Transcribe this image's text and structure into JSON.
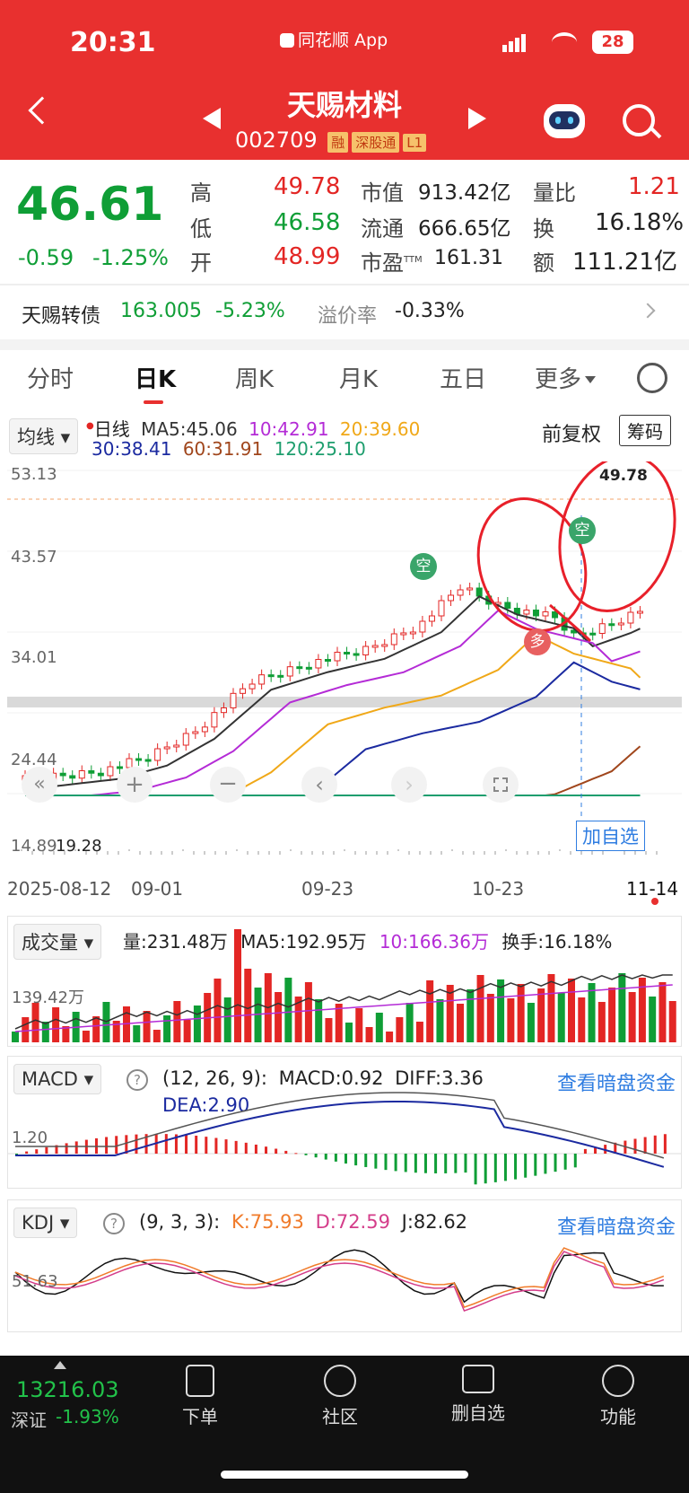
{
  "status_bar": {
    "time": "20:31",
    "app_source": "同花顺 App",
    "battery": "28"
  },
  "header": {
    "title": "天赐材料",
    "code": "002709",
    "tags": [
      "融",
      "深股通",
      "L1"
    ]
  },
  "quote": {
    "price": "46.61",
    "change": "-0.59",
    "change_pct": "-1.25%",
    "high_label": "高",
    "high": "49.78",
    "low_label": "低",
    "low": "46.58",
    "open_label": "开",
    "open": "48.99",
    "mktcap_label": "市值",
    "mktcap": "913.42亿",
    "float_label": "流通",
    "float": "666.65亿",
    "pe_label": "市盈",
    "pe_sup": "TTM",
    "pe": "161.31",
    "volratio_label": "量比",
    "volratio": "1.21",
    "turnover_label": "换",
    "turnover": "16.18%",
    "amount_label": "额",
    "amount": "111.21亿"
  },
  "bond": {
    "name": "天赐转债",
    "price": "163.005",
    "pct": "-5.23%",
    "premium_label": "溢价率",
    "premium": "-0.33%"
  },
  "tabs": [
    "分时",
    "日K",
    "周K",
    "月K",
    "五日",
    "更多"
  ],
  "active_tab": "日K",
  "kline": {
    "indicator_select": "均线",
    "line_label": "日线",
    "ma5": "MA5:45.06",
    "ma10": "10:42.91",
    "ma20": "20:39.60",
    "ma30": "30:38.41",
    "ma60": "60:31.91",
    "ma120": "120:25.10",
    "adjust": "前复权",
    "chip_button": "筹码",
    "y_labels": [
      "53.13",
      "43.57",
      "34.01",
      "24.44",
      "14.89"
    ],
    "max_label": "49.78",
    "min_label": "19.28",
    "dates": [
      "2025-08-12",
      "09-01",
      "09-23",
      "10-23",
      "11-14"
    ],
    "add_watch": "加自选",
    "signal_kong": "空",
    "signal_duo": "多"
  },
  "volume": {
    "select": "成交量",
    "vol": "量:231.48万",
    "ma5": "MA5:192.95万",
    "ma10": "10:166.36万",
    "turnover": "换手:16.18%",
    "y_label": "139.42万"
  },
  "macd": {
    "select": "MACD",
    "params": "(12, 26, 9):",
    "macd": "MACD:0.92",
    "diff": "DIFF:3.36",
    "dea": "DEA:2.90",
    "link": "查看暗盘资金",
    "y_label": "1.20"
  },
  "kdj": {
    "select": "KDJ",
    "params": "(9, 3, 3):",
    "k": "K:75.93",
    "d": "D:72.59",
    "j": "J:82.62",
    "link": "查看暗盘资金",
    "y_label": "51.63"
  },
  "bottom": {
    "index_value": "13216.03",
    "index_name": "深证",
    "index_pct": "-1.93%",
    "buttons": [
      "下单",
      "社区",
      "删自选",
      "功能"
    ]
  },
  "colors": {
    "up": "#e32624",
    "down": "#0f9e36",
    "header": "#e8302f",
    "ma5": "#333333",
    "ma10": "#b42bd6",
    "ma20": "#f0a818",
    "ma30": "#1b2aa0",
    "ma60": "#a0461c",
    "ma120": "#1e9e6e"
  }
}
